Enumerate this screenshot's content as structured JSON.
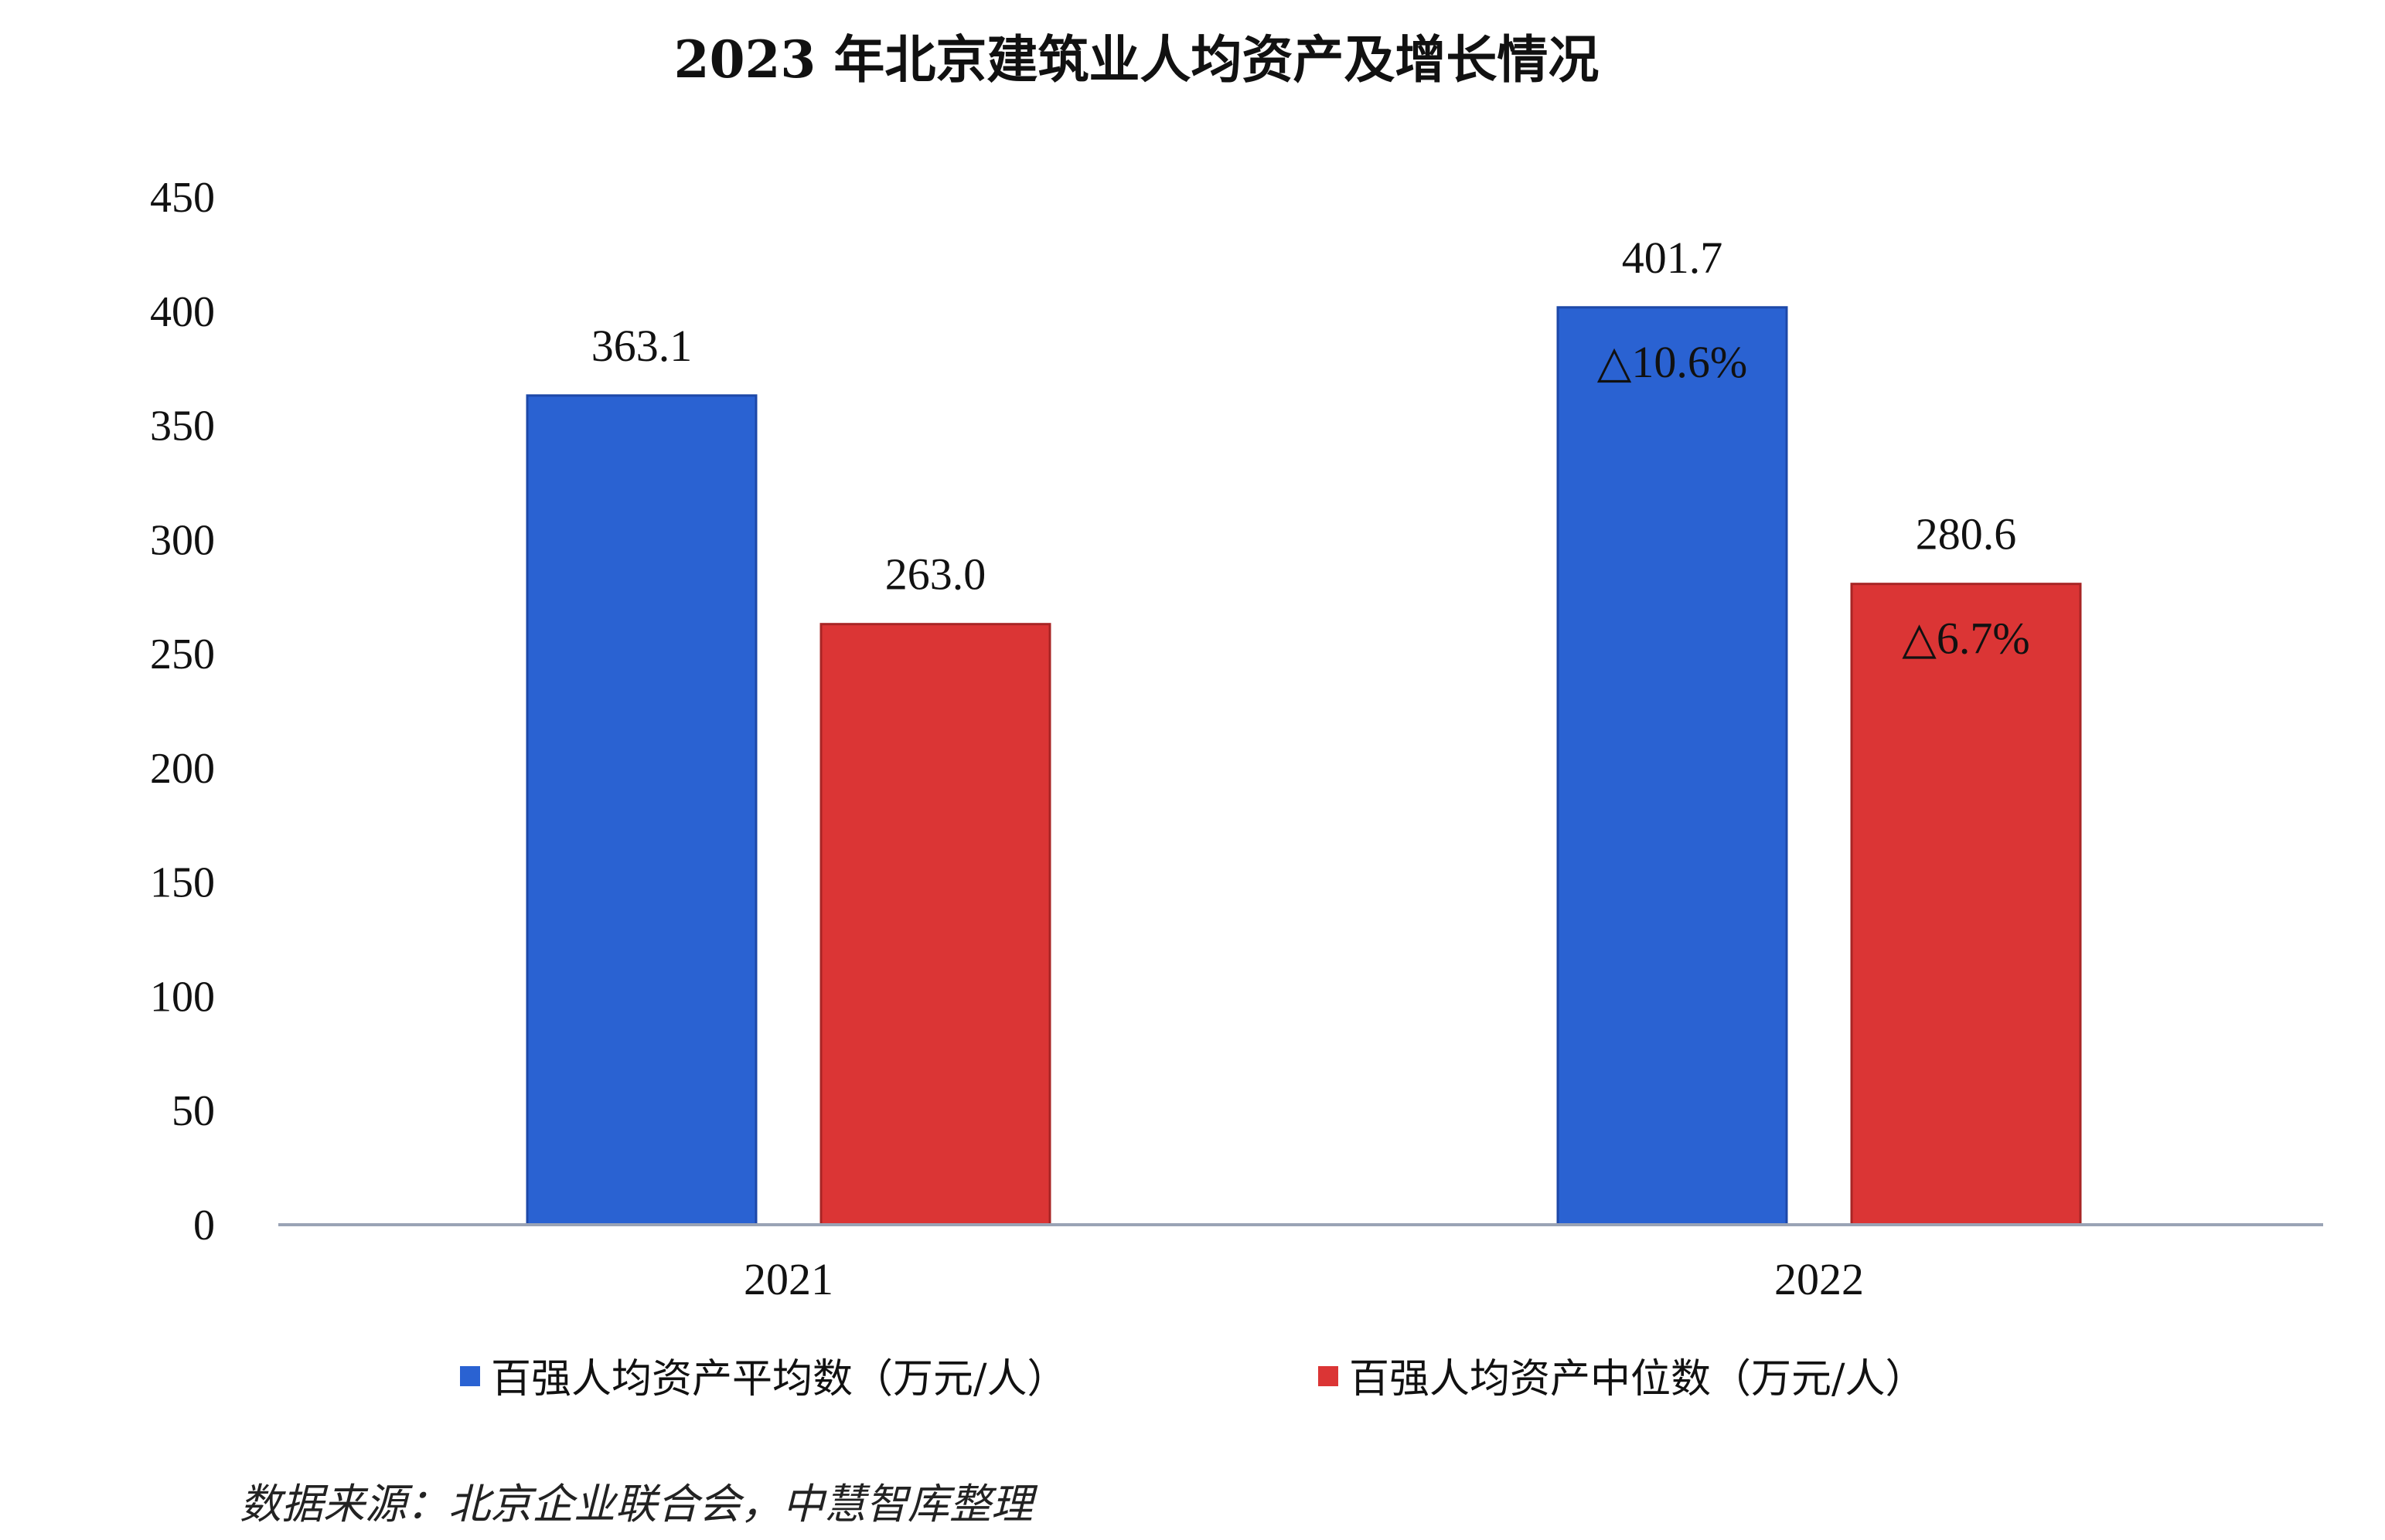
{
  "chart_data": {
    "type": "bar",
    "title": "2023 年北京建筑业人均资产及增长情况",
    "categories": [
      "2021",
      "2022"
    ],
    "series": [
      {
        "name": "百强人均资产平均数（万元/人）",
        "values": [
          363.1,
          401.7
        ],
        "labels": [
          "363.1",
          "401.7"
        ],
        "growth": [
          "",
          "△10.6%"
        ],
        "color": "#2a62d2"
      },
      {
        "name": "百强人均资产中位数（万元/人）",
        "values": [
          263.0,
          280.6
        ],
        "labels": [
          "263.0",
          "280.6"
        ],
        "growth": [
          "",
          "△6.7%"
        ],
        "color": "#db3535"
      }
    ],
    "ylim": [
      0,
      450
    ],
    "yticks": [
      "0",
      "50",
      "100",
      "150",
      "200",
      "250",
      "300",
      "350",
      "400",
      "450"
    ],
    "legend_position": "bottom",
    "grid": false,
    "source": "数据来源：北京企业联合会，中慧智库整理"
  }
}
